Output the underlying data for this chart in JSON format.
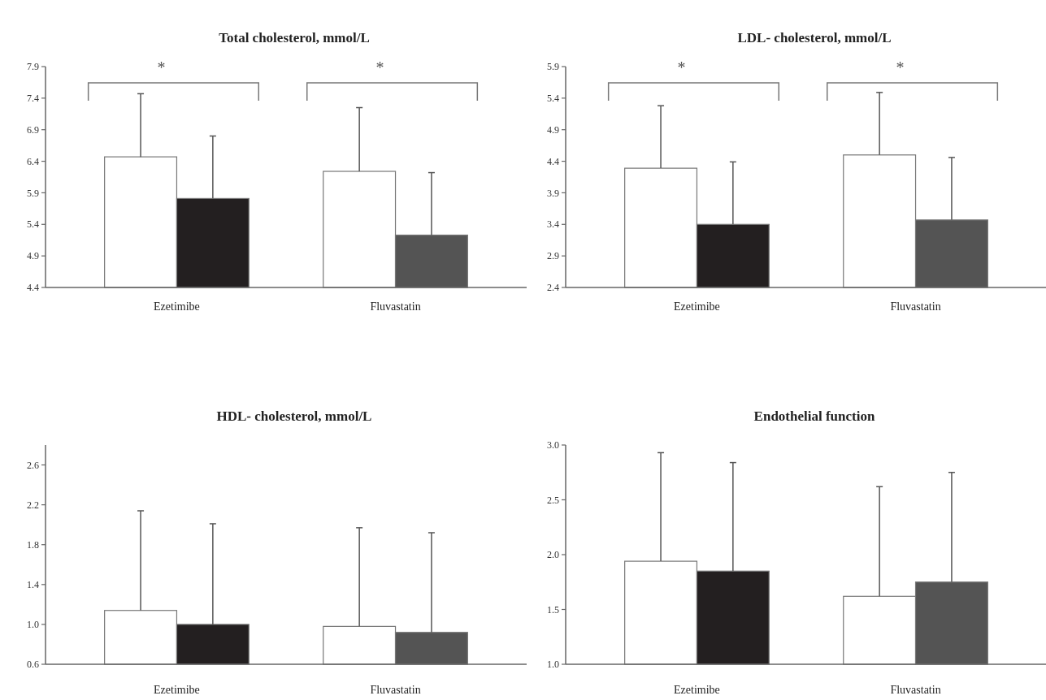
{
  "chart_data": [
    {
      "type": "bar",
      "title": "Total cholesterol, mmol/L",
      "categories": [
        "Ezetimibe",
        "Fluvastatin"
      ],
      "ylim": [
        4.4,
        7.9
      ],
      "yticks": [
        4.4,
        4.9,
        5.4,
        5.9,
        6.4,
        6.9,
        7.4,
        7.9
      ],
      "annotations": [
        "*",
        "*"
      ],
      "series": [
        {
          "colors": [
            "#ffffff",
            "#ffffff"
          ],
          "values": [
            6.47,
            6.24
          ],
          "errors": [
            [
              6.47,
              7.47
            ],
            [
              6.24,
              7.25
            ]
          ]
        },
        {
          "colors": [
            "#231f20",
            "#545454"
          ],
          "values": [
            5.81,
            5.23
          ],
          "errors": [
            [
              5.81,
              6.8
            ],
            [
              5.23,
              6.22
            ]
          ]
        }
      ]
    },
    {
      "type": "bar",
      "title": "LDL- cholesterol, mmol/L",
      "categories": [
        "Ezetimibe",
        "Fluvastatin"
      ],
      "ylim": [
        2.4,
        5.9
      ],
      "yticks": [
        2.4,
        2.9,
        3.4,
        3.9,
        4.4,
        4.9,
        5.4,
        5.9
      ],
      "annotations": [
        "*",
        "*"
      ],
      "series": [
        {
          "colors": [
            "#ffffff",
            "#ffffff"
          ],
          "values": [
            4.29,
            4.5
          ],
          "errors": [
            [
              4.29,
              5.28
            ],
            [
              4.5,
              5.49
            ]
          ]
        },
        {
          "colors": [
            "#231f20",
            "#545454"
          ],
          "values": [
            3.4,
            3.47
          ],
          "errors": [
            [
              3.4,
              4.39
            ],
            [
              3.47,
              4.46
            ]
          ]
        }
      ]
    },
    {
      "type": "bar",
      "title": "HDL- cholesterol, mmol/L",
      "categories": [
        "Ezetimibe",
        "Fluvastatin"
      ],
      "ylim": [
        0.6,
        2.8
      ],
      "yticks": [
        0.6,
        {
          "value": 1.0,
          "label": "1.0"
        },
        1.4,
        1.8,
        2.2,
        2.6
      ],
      "series": [
        {
          "colors": [
            "#ffffff",
            "#ffffff"
          ],
          "values": [
            1.14,
            0.98
          ],
          "errors": [
            [
              1.14,
              2.14
            ],
            [
              0.98,
              1.97
            ]
          ]
        },
        {
          "colors": [
            "#231f20",
            "#545454"
          ],
          "values": [
            1.0,
            0.92
          ],
          "errors": [
            [
              1.0,
              2.01
            ],
            [
              0.92,
              1.92
            ]
          ]
        }
      ]
    },
    {
      "type": "bar",
      "title": "Endothelial  function",
      "categories": [
        "Ezetimibe",
        "Fluvastatin"
      ],
      "ylim": [
        1.0,
        3.0
      ],
      "yticks": [
        {
          "value": 1.0,
          "label": "1.0"
        },
        1.5,
        {
          "value": 2.0,
          "label": "2.0"
        },
        2.5,
        {
          "value": 3.0,
          "label": "3.0"
        }
      ],
      "series": [
        {
          "colors": [
            "#ffffff",
            "#ffffff"
          ],
          "values": [
            1.94,
            1.62
          ],
          "errors": [
            [
              1.94,
              2.93
            ],
            [
              1.62,
              2.62
            ]
          ]
        },
        {
          "colors": [
            "#231f20",
            "#545454"
          ],
          "values": [
            1.85,
            1.75
          ],
          "errors": [
            [
              1.85,
              2.84
            ],
            [
              1.75,
              2.75
            ]
          ]
        }
      ]
    }
  ]
}
